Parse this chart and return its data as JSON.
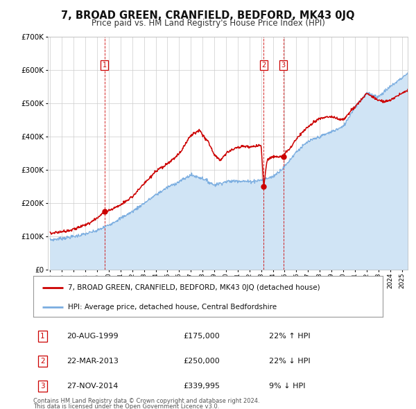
{
  "title": "7, BROAD GREEN, CRANFIELD, BEDFORD, MK43 0JQ",
  "subtitle": "Price paid vs. HM Land Registry's House Price Index (HPI)",
  "legend_label_red": "7, BROAD GREEN, CRANFIELD, BEDFORD, MK43 0JQ (detached house)",
  "legend_label_blue": "HPI: Average price, detached house, Central Bedfordshire",
  "footer_line1": "Contains HM Land Registry data © Crown copyright and database right 2024.",
  "footer_line2": "This data is licensed under the Open Government Licence v3.0.",
  "transactions": [
    {
      "num": 1,
      "date": "20-AUG-1999",
      "price": 175000,
      "pct": "22%",
      "dir": "↑",
      "year": 1999.63
    },
    {
      "num": 2,
      "date": "22-MAR-2013",
      "price": 250000,
      "pct": "22%",
      "dir": "↓",
      "year": 2013.22
    },
    {
      "num": 3,
      "date": "27-NOV-2014",
      "price": 339995,
      "pct": "9%",
      "dir": "↓",
      "year": 2014.9
    }
  ],
  "vline_color": "#cc0000",
  "dot_color": "#cc0000",
  "red_line_color": "#cc0000",
  "blue_line_color": "#7aade0",
  "blue_fill_color": "#d0e4f5",
  "ylim": [
    0,
    700000
  ],
  "yticks": [
    0,
    100000,
    200000,
    300000,
    400000,
    500000,
    600000,
    700000
  ],
  "xlim_start": 1994.8,
  "xlim_end": 2025.5,
  "background_color": "#ffffff",
  "grid_color": "#cccccc",
  "label_box_color": "#cc0000",
  "title_fontsize": 10.5,
  "subtitle_fontsize": 8.5
}
